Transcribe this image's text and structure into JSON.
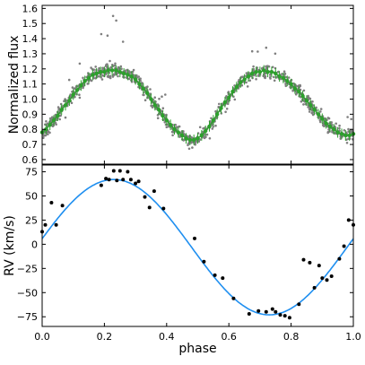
{
  "chart_data": [
    {
      "type": "scatter",
      "title": "",
      "xlabel": "",
      "ylabel": "Normalized flux",
      "xlim": [
        0.0,
        1.0
      ],
      "ylim": [
        0.57,
        1.62
      ],
      "yticks": [
        "0.6",
        "0.7",
        "0.8",
        "0.9",
        "1.0",
        "1.1",
        "1.2",
        "1.3",
        "1.4",
        "1.5",
        "1.6"
      ],
      "xtick_labels_shown": false,
      "grid": false,
      "legend": "none",
      "colors": {
        "raw_points": "#7f7f7f",
        "binned_points": "#2ca02c",
        "model": "#2ca02c"
      },
      "series": [
        {
          "kind": "binned-with-errorbars",
          "x": [
            0.0,
            0.0125,
            0.025,
            0.0375,
            0.05,
            0.0625,
            0.075,
            0.0875,
            0.1,
            0.1125,
            0.125,
            0.1375,
            0.15,
            0.1625,
            0.175,
            0.1875,
            0.2,
            0.2125,
            0.225,
            0.2375,
            0.25,
            0.2625,
            0.275,
            0.2875,
            0.3,
            0.3125,
            0.325,
            0.3375,
            0.35,
            0.3625,
            0.375,
            0.3875,
            0.4,
            0.4125,
            0.425,
            0.4375,
            0.45,
            0.4625,
            0.475,
            0.4875,
            0.5,
            0.5125,
            0.525,
            0.5375,
            0.55,
            0.5625,
            0.575,
            0.5875,
            0.6,
            0.6125,
            0.625,
            0.6375,
            0.65,
            0.6625,
            0.675,
            0.6875,
            0.7,
            0.7125,
            0.725,
            0.7375,
            0.75,
            0.7625,
            0.775,
            0.7875,
            0.8,
            0.8125,
            0.825,
            0.8375,
            0.85,
            0.8625,
            0.875,
            0.8875,
            0.9,
            0.9125,
            0.925,
            0.9375,
            0.95,
            0.9625,
            0.975,
            0.9875,
            1.0
          ],
          "y": [
            0.78,
            0.8,
            0.83,
            0.86,
            0.89,
            0.93,
            0.96,
            0.99,
            1.03,
            1.06,
            1.09,
            1.12,
            1.14,
            1.16,
            1.17,
            1.18,
            1.18,
            1.19,
            1.19,
            1.19,
            1.18,
            1.17,
            1.16,
            1.15,
            1.13,
            1.1,
            1.07,
            1.04,
            1.0,
            0.96,
            0.93,
            0.89,
            0.86,
            0.83,
            0.8,
            0.78,
            0.76,
            0.74,
            0.73,
            0.73,
            0.74,
            0.76,
            0.79,
            0.82,
            0.86,
            0.9,
            0.94,
            0.98,
            1.01,
            1.05,
            1.08,
            1.11,
            1.13,
            1.15,
            1.17,
            1.18,
            1.18,
            1.19,
            1.18,
            1.18,
            1.17,
            1.15,
            1.14,
            1.12,
            1.1,
            1.07,
            1.05,
            1.02,
            0.99,
            0.96,
            0.93,
            0.9,
            0.87,
            0.84,
            0.82,
            0.8,
            0.78,
            0.77,
            0.76,
            0.76,
            0.77
          ],
          "yerr": 0.035
        },
        {
          "kind": "raw-points",
          "note": "approximately 1000 grey photometric points scattered about the model, typical deviation about 0.05, largest values near 1.55 at phase 0.23"
        }
      ]
    },
    {
      "type": "scatter",
      "title": "",
      "xlabel": "phase",
      "ylabel": "RV (km/s)",
      "xlim": [
        0.0,
        1.0
      ],
      "ylim": [
        -85,
        82
      ],
      "xticks": [
        "0.0",
        "0.2",
        "0.4",
        "0.6",
        "0.8",
        "1.0"
      ],
      "yticks": [
        "75",
        "50",
        "25",
        "0",
        "−25",
        "−50",
        "−75"
      ],
      "grid": false,
      "legend": "none",
      "colors": {
        "points": "#000000",
        "model": "#1f8ff0"
      },
      "model": {
        "kind": "sinusoid",
        "gamma": -3,
        "semi_amplitude": 70,
        "phase_of_maximum": 0.23,
        "period": 1.0
      },
      "points": {
        "x": [
          0.0,
          0.01,
          0.03,
          0.045,
          0.065,
          0.19,
          0.205,
          0.215,
          0.23,
          0.24,
          0.25,
          0.26,
          0.275,
          0.285,
          0.3,
          0.31,
          0.33,
          0.345,
          0.36,
          0.39,
          0.49,
          0.52,
          0.555,
          0.58,
          0.615,
          0.665,
          0.695,
          0.72,
          0.74,
          0.75,
          0.765,
          0.78,
          0.795,
          0.825,
          0.84,
          0.86,
          0.875,
          0.89,
          0.9,
          0.915,
          0.93,
          0.955,
          0.97,
          0.985,
          1.0
        ],
        "y": [
          13,
          20,
          43,
          20,
          40,
          61,
          68,
          67,
          76,
          66,
          76,
          67,
          75,
          67,
          63,
          65,
          49,
          38,
          55,
          37,
          6,
          -18,
          -32,
          -35,
          -56,
          -72,
          -69,
          -70,
          -67,
          -70,
          -73,
          -74,
          -76,
          -62,
          -16,
          -19,
          -45,
          -22,
          -35,
          -37,
          -33,
          -15,
          -2,
          25,
          20
        ]
      }
    }
  ]
}
